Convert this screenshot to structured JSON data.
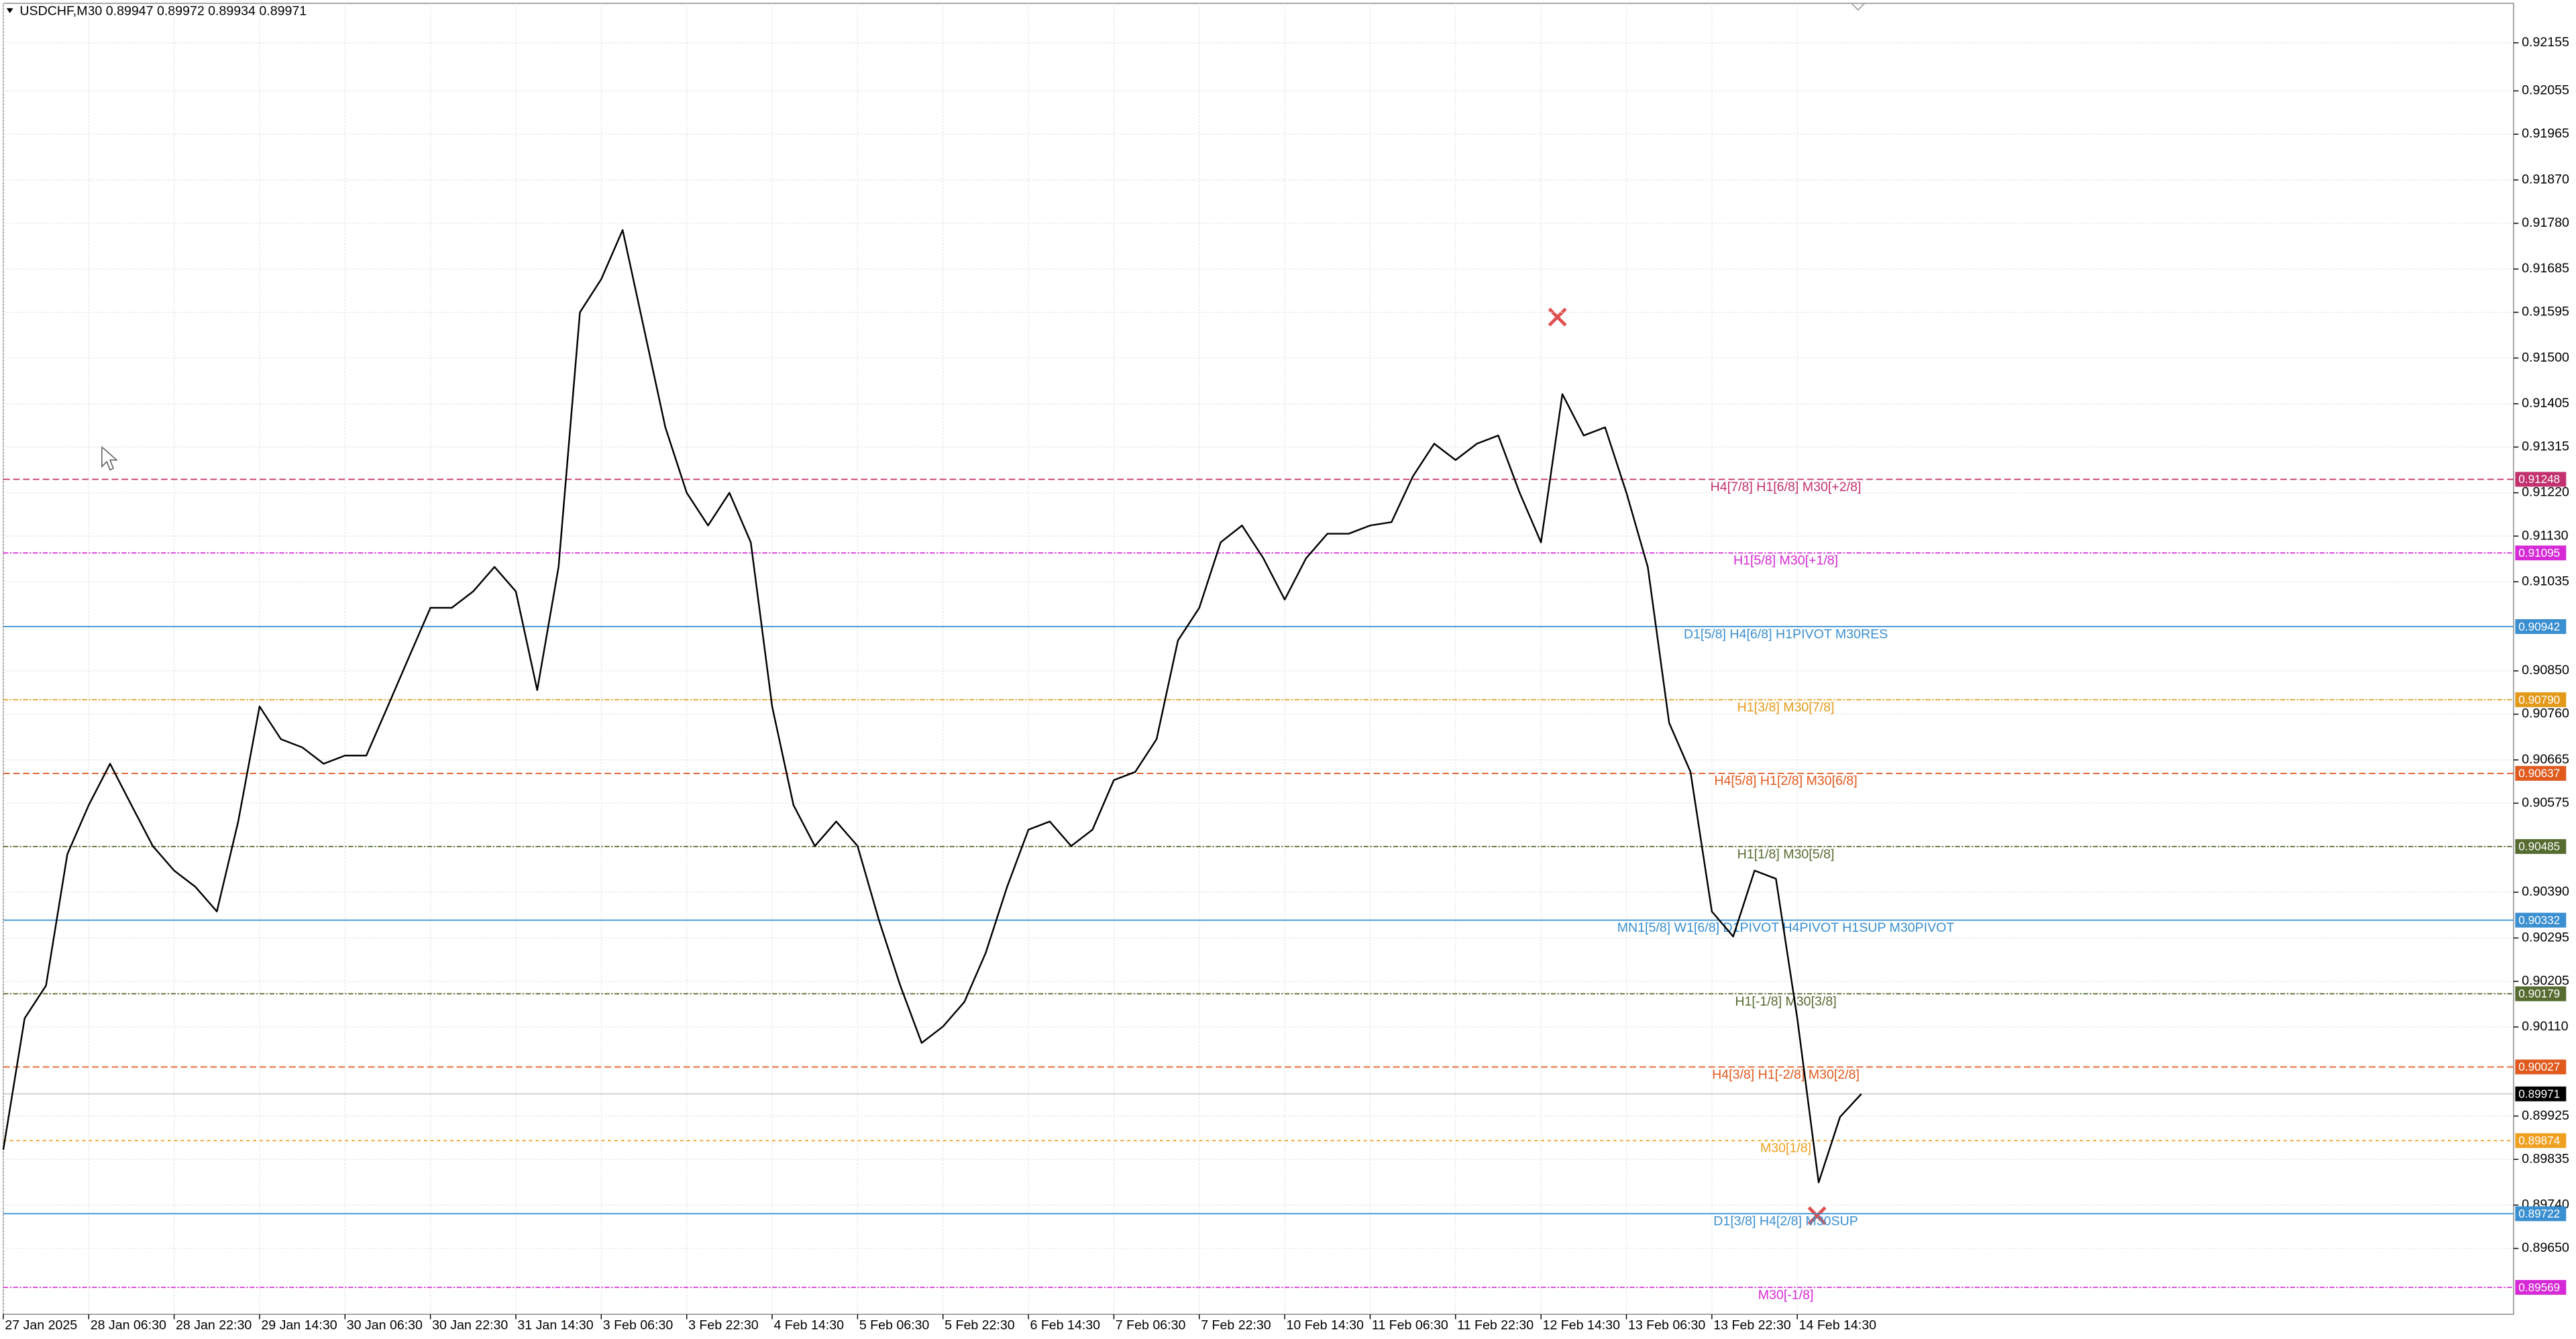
{
  "chart_data": {
    "type": "line",
    "title": "USDCHF,M30  0.89947 0.89972 0.89934 0.89971",
    "categories": [
      "27 Jan 2025",
      null,
      null,
      null,
      "28 Jan 06:30",
      null,
      null,
      null,
      "28 Jan 22:30",
      null,
      null,
      null,
      "29 Jan 14:30",
      null,
      null,
      null,
      "30 Jan 06:30",
      null,
      null,
      null,
      "30 Jan 22:30",
      null,
      null,
      null,
      "31 Jan 14:30",
      null,
      null,
      null,
      "3 Feb 06:30",
      null,
      null,
      null,
      "3 Feb 22:30",
      null,
      null,
      null,
      "4 Feb 14:30",
      null,
      null,
      null,
      "5 Feb 06:30",
      null,
      null,
      null,
      "5 Feb 22:30",
      null,
      null,
      null,
      "6 Feb 14:30",
      null,
      null,
      null,
      "7 Feb 06:30",
      null,
      null,
      null,
      "7 Feb 22:30",
      null,
      null,
      null,
      "10 Feb 14:30",
      null,
      null,
      null,
      "11 Feb 06:30",
      null,
      null,
      null,
      "11 Feb 22:30",
      null,
      null,
      null,
      "12 Feb 14:30",
      null,
      null,
      null,
      "13 Feb 06:30",
      null,
      null,
      null,
      "13 Feb 22:30",
      null,
      null,
      null,
      "14 Feb 14:30",
      null,
      null,
      null
    ],
    "series": [
      {
        "name": "USDCHF",
        "color": "#000000",
        "values": [
          0.89855,
          0.90128,
          0.90196,
          0.90469,
          0.90571,
          0.90657,
          0.90571,
          0.90486,
          0.90435,
          0.90401,
          0.9035,
          0.90537,
          0.90776,
          0.90708,
          0.90691,
          0.90657,
          0.90674,
          0.90674,
          0.90776,
          0.90879,
          0.90981,
          0.90981,
          0.91015,
          0.91066,
          0.91015,
          0.9081,
          0.91066,
          0.91595,
          0.91664,
          0.91766,
          0.91561,
          0.91356,
          0.9122,
          0.91152,
          0.9122,
          0.91117,
          0.90776,
          0.90571,
          0.90486,
          0.90537,
          0.90486,
          0.90332,
          0.90196,
          0.90077,
          0.90111,
          0.90162,
          0.90264,
          0.90401,
          0.9052,
          0.90537,
          0.90486,
          0.9052,
          0.90623,
          0.9064,
          0.90708,
          0.90913,
          0.90981,
          0.91117,
          0.91152,
          0.91084,
          0.90998,
          0.91084,
          0.91135,
          0.91135,
          0.91152,
          0.91159,
          0.91254,
          0.91322,
          0.91288,
          0.91322,
          0.91339,
          0.9122,
          0.91117,
          0.91425,
          0.91339,
          0.91356,
          0.9122,
          0.91066,
          0.90742,
          0.9064,
          0.9035,
          0.90298,
          0.90435,
          0.90418,
          0.90128,
          0.89787,
          0.89923,
          0.89971
        ]
      }
    ],
    "ylim": [
      0.89513,
      0.92237
    ],
    "yticks": [
      0.92155,
      0.92055,
      0.91965,
      {
        "value": 0.9187,
        "label": "0.91870"
      },
      {
        "value": 0.9178,
        "label": "0.91780"
      },
      0.91685,
      0.91595,
      {
        "value": 0.915,
        "label": "0.91500"
      },
      0.91405,
      0.91315,
      {
        "value": 0.9122,
        "label": "0.91220"
      },
      {
        "value": 0.9113,
        "label": "0.91130"
      },
      0.91035,
      {
        "value": 0.9085,
        "label": "0.90850"
      },
      {
        "value": 0.9076,
        "label": "0.90760"
      },
      0.90665,
      0.90575,
      {
        "value": 0.9039,
        "label": "0.90390"
      },
      0.90295,
      0.90205,
      {
        "value": 0.9011,
        "label": "0.90110"
      },
      0.89925,
      0.89835,
      {
        "value": 0.8974,
        "label": "0.89740"
      },
      {
        "value": 0.8965,
        "label": "0.89650"
      }
    ],
    "grid": true,
    "levels": [
      {
        "value": 0.91248,
        "label": "H4[7/8] H1[6/8] M30[+2/8]",
        "color": "#c2306e",
        "dash": "4 2"
      },
      {
        "value": 0.91095,
        "label": "H1[5/8] M30[+1/8]",
        "color": "#d62ad6",
        "dash": "3 1 1 1"
      },
      {
        "value": 0.90942,
        "label": "D1[5/8] H4[6/8] H1PIVOT M30RES",
        "color": "#3a8fd0",
        "dash": ""
      },
      {
        "value": 0.9079,
        "value_label": "0.90790",
        "label": "H1[3/8] M30[7/8]",
        "color": "#e39a1a",
        "dash": "3 1 1 1"
      },
      {
        "value": 0.90637,
        "label": "H4[5/8] H1[2/8] M30[6/8]",
        "color": "#e05a1e",
        "dash": "4 2"
      },
      {
        "value": 0.90485,
        "label": "H1[1/8] M30[5/8]",
        "color": "#556b2f",
        "dash": "3 1 1 1"
      },
      {
        "value": 0.90332,
        "label": "MN1[5/8] W1[6/8] D1PIVOT H4PIVOT H1SUP M30PIVOT",
        "color": "#3a8fd0",
        "dash": ""
      },
      {
        "value": 0.90179,
        "label": "H1[-1/8] M30[3/8]",
        "color": "#556b2f",
        "dash": "3 1 1 1"
      },
      {
        "value": 0.90027,
        "label": "H4[3/8] H1[-2/8] M30[2/8]",
        "color": "#e05a1e",
        "dash": "4 2"
      },
      {
        "value": 0.89874,
        "label": "M30[1/8]",
        "color": "#f0a020",
        "dash": "2 2"
      },
      {
        "value": 0.89722,
        "label": "D1[3/8] H4[2/8] M30SUP",
        "color": "#3a8fd0",
        "dash": ""
      },
      {
        "value": 0.89569,
        "label": "M30[-1/8]",
        "color": "#d62ad6",
        "dash": "3 1 1 1"
      }
    ],
    "current_price": 0.89971
  }
}
